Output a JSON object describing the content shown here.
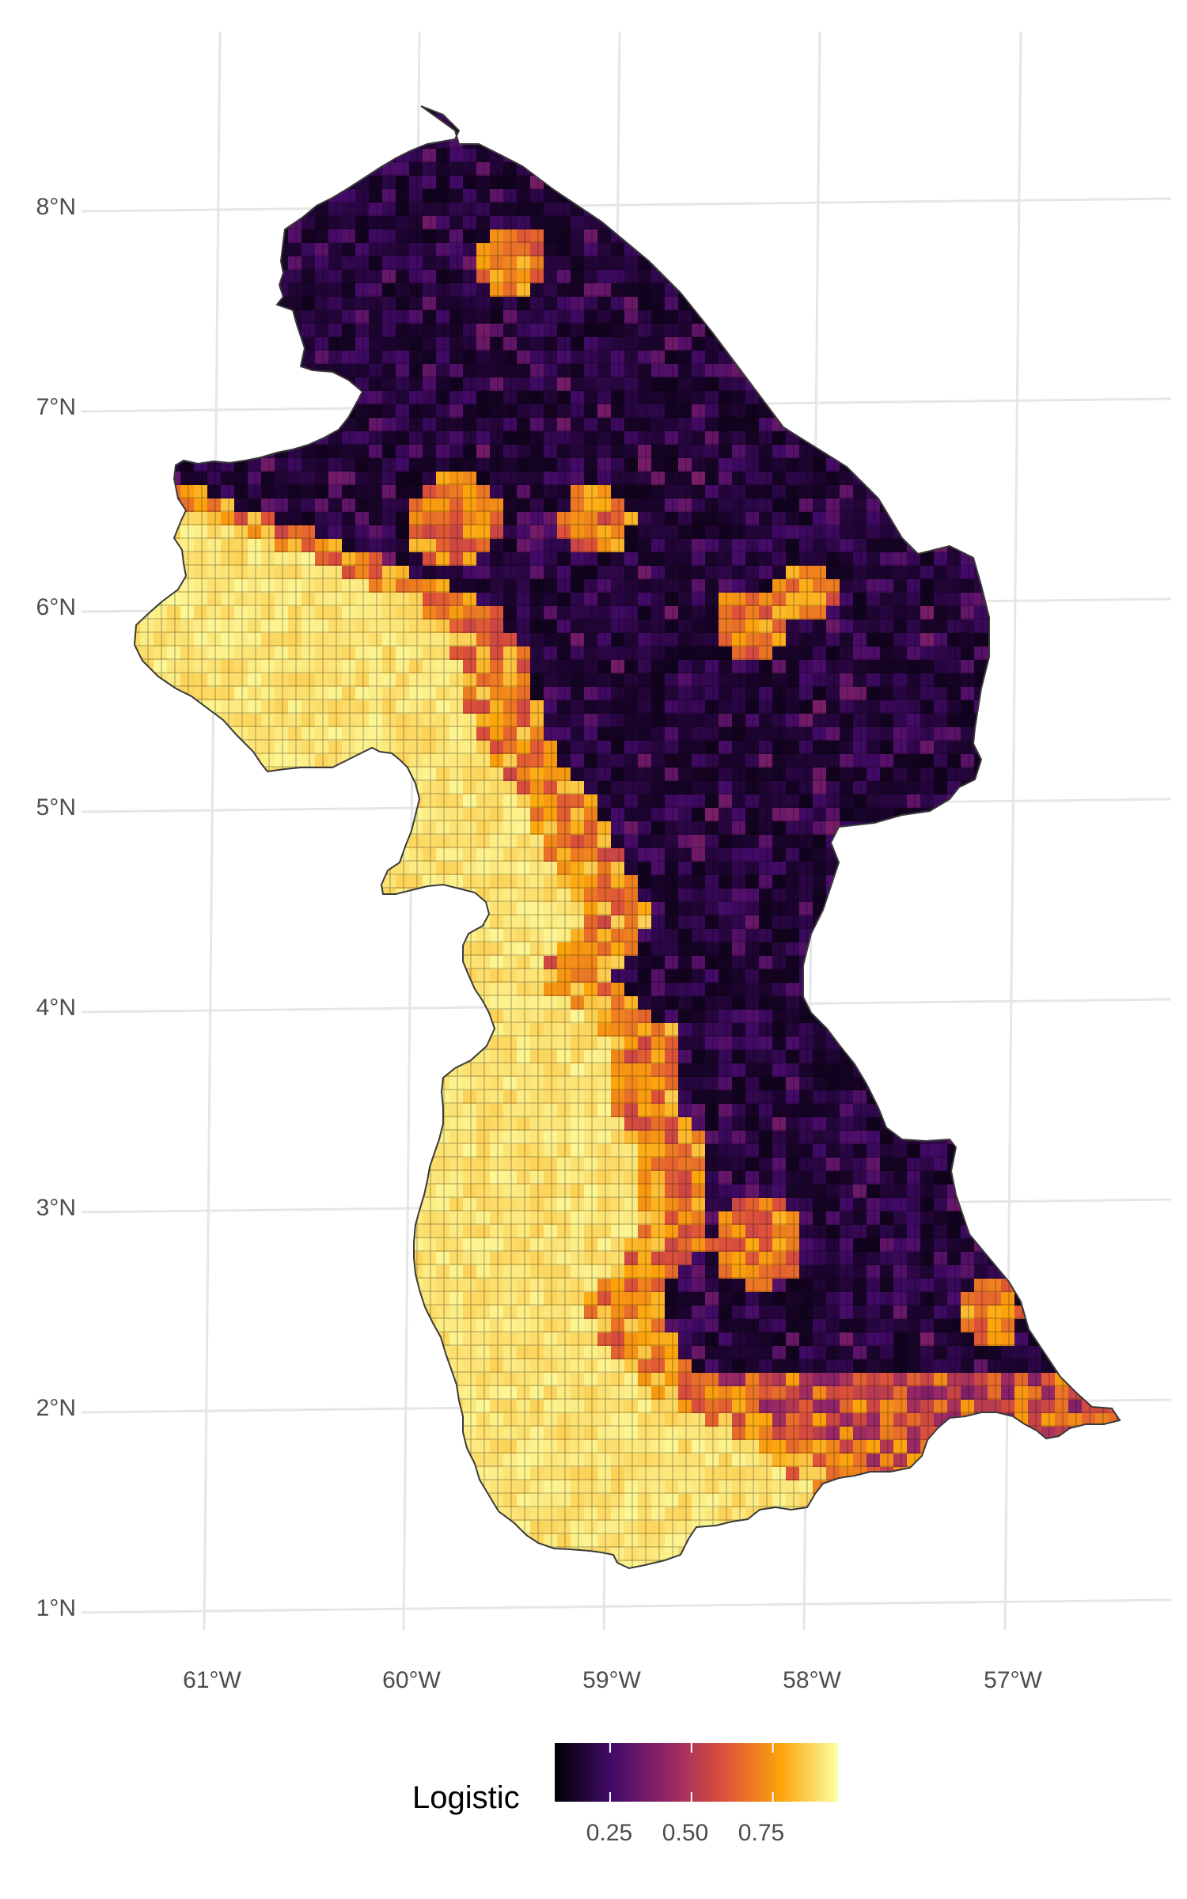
{
  "map": {
    "region": "Guyana",
    "fill_variable": "Logistic",
    "latitude_labels": [
      "1°N",
      "2°N",
      "3°N",
      "4°N",
      "5°N",
      "6°N",
      "7°N",
      "8°N"
    ],
    "longitude_labels": [
      "61°W",
      "60°W",
      "59°W",
      "58°W",
      "57°W"
    ],
    "panel_background": "#ffffff",
    "gridline_color": "#e6e6e6",
    "cell_outline_color": "#000000",
    "colormap": "inferno",
    "colormap_stops": [
      "#000004",
      "#420a68",
      "#932667",
      "#dd513a",
      "#fca50a",
      "#fcffa4"
    ],
    "value_range": [
      0.08,
      0.95
    ],
    "grid": true
  },
  "legend": {
    "title": "Logistic",
    "ticks": [
      "0.25",
      "0.50",
      "0.75"
    ],
    "tick_values": [
      0.25,
      0.5,
      0.75
    ],
    "position": "bottom"
  },
  "chart_data": {
    "type": "heatmap",
    "description_of_values": "Gridded logistic suitability values over Guyana; high values (≈0.85–0.95) in the western/southwestern savanna belt, low values (≈0.1–0.3) across the central and northeastern forest.",
    "latitude_range": [
      1.0,
      8.5
    ],
    "longitude_range": [
      -61.4,
      -56.5
    ],
    "legend_range": [
      0.08,
      0.95
    ]
  }
}
